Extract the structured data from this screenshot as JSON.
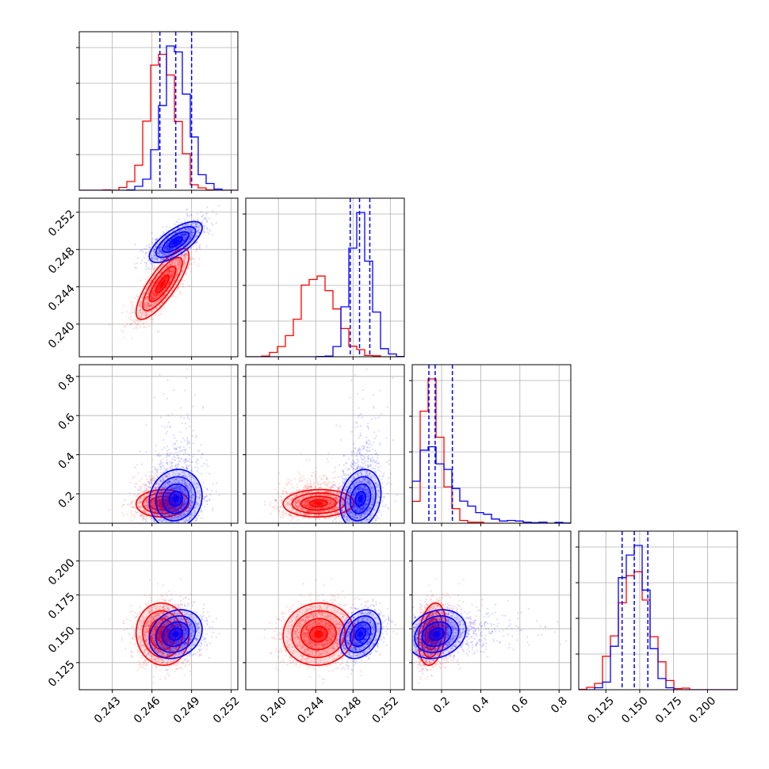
{
  "colors": {
    "series_a": "#ff0000",
    "series_b": "#0000ff",
    "grid": "#b0b0b0"
  },
  "chart_data": {
    "type": "corner",
    "grid": true,
    "n_params": 4,
    "params": [
      {
        "range": [
          0.2405,
          0.2525
        ],
        "ticks": [
          0.243,
          0.246,
          0.249,
          0.252
        ],
        "tick_labels": [
          "0.243",
          "0.246",
          "0.249",
          "0.252"
        ]
      },
      {
        "range": [
          0.2365,
          0.2535
        ],
        "ticks": [
          0.24,
          0.244,
          0.248,
          0.252
        ],
        "tick_labels": [
          "0.240",
          "0.244",
          "0.248",
          "0.252"
        ]
      },
      {
        "range": [
          0.05,
          0.86
        ],
        "ticks": [
          0.2,
          0.4,
          0.6,
          0.8
        ],
        "tick_labels": [
          "0.2",
          "0.4",
          "0.6",
          "0.8"
        ]
      },
      {
        "range": [
          0.105,
          0.222
        ],
        "ticks": [
          0.125,
          0.15,
          0.175,
          0.2
        ],
        "tick_labels": [
          "0.125",
          "0.150",
          "0.175",
          "0.200"
        ]
      }
    ],
    "series": [
      {
        "color": "#ff0000",
        "means": [
          0.2468,
          0.2443,
          0.152,
          0.146
        ],
        "sigmas": [
          0.001,
          0.0019,
          0.028,
          0.0115
        ],
        "correlations": {
          "1-0": 0.8,
          "2-0": 0.05,
          "2-1": 0.05,
          "3-0": -0.05,
          "3-1": 0.05,
          "3-2": 0.25
        },
        "quantile_lines": []
      },
      {
        "color": "#0000ff",
        "means": [
          0.2478,
          0.2488,
          0.175,
          0.146
        ],
        "sigmas": [
          0.001,
          0.0011,
          0.06,
          0.009
        ],
        "correlations": {
          "1-0": 0.7,
          "2-0": 0.1,
          "2-1": 0.2,
          "3-0": 0.2,
          "3-1": 0.3,
          "3-2": 0.2
        },
        "quantile_lines": [
          [
            0.2466,
            0.2478,
            0.249
          ],
          [
            0.2477,
            0.2487,
            0.2498
          ],
          [
            0.135,
            0.167,
            0.255
          ],
          [
            0.137,
            0.146,
            0.156
          ]
        ]
      }
    ]
  }
}
